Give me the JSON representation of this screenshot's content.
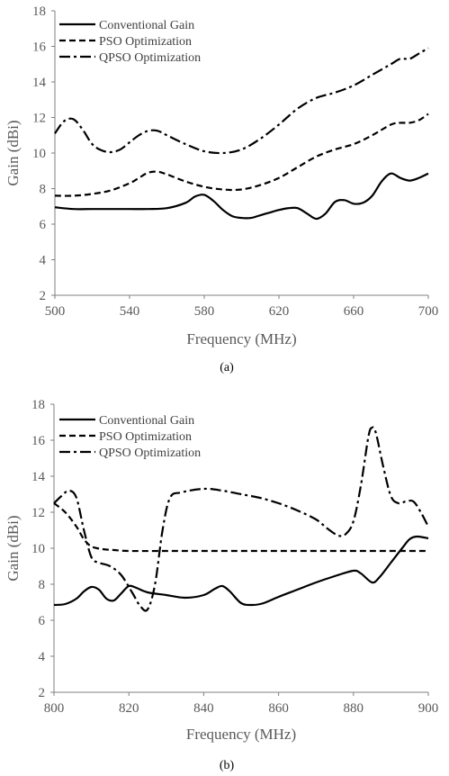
{
  "chart_data": [
    {
      "type": "line",
      "caption": "(a)",
      "xlabel": "Frequency (MHz)",
      "ylabel": "Gain (dBi)",
      "xlim": [
        500,
        700
      ],
      "ylim": [
        2,
        18
      ],
      "xticks": [
        500,
        540,
        580,
        620,
        660,
        700
      ],
      "yticks": [
        2,
        4,
        6,
        8,
        10,
        12,
        14,
        16,
        18
      ],
      "grid": false,
      "legend_position": "top-left",
      "series": [
        {
          "name": "Conventional Gain",
          "style": "solid",
          "points": [
            [
              500,
              6.95
            ],
            [
              510,
              6.85
            ],
            [
              520,
              6.85
            ],
            [
              530,
              6.85
            ],
            [
              540,
              6.85
            ],
            [
              550,
              6.85
            ],
            [
              560,
              6.9
            ],
            [
              570,
              7.2
            ],
            [
              575,
              7.55
            ],
            [
              580,
              7.65
            ],
            [
              585,
              7.3
            ],
            [
              590,
              6.8
            ],
            [
              595,
              6.45
            ],
            [
              600,
              6.35
            ],
            [
              605,
              6.35
            ],
            [
              610,
              6.5
            ],
            [
              615,
              6.65
            ],
            [
              620,
              6.8
            ],
            [
              625,
              6.9
            ],
            [
              630,
              6.9
            ],
            [
              635,
              6.6
            ],
            [
              640,
              6.3
            ],
            [
              645,
              6.6
            ],
            [
              650,
              7.25
            ],
            [
              655,
              7.35
            ],
            [
              660,
              7.15
            ],
            [
              665,
              7.2
            ],
            [
              670,
              7.6
            ],
            [
              675,
              8.4
            ],
            [
              680,
              8.85
            ],
            [
              685,
              8.6
            ],
            [
              690,
              8.45
            ],
            [
              695,
              8.6
            ],
            [
              700,
              8.85
            ]
          ]
        },
        {
          "name": "PSO Optimization",
          "style": "dashed",
          "points": [
            [
              500,
              7.6
            ],
            [
              510,
              7.6
            ],
            [
              520,
              7.7
            ],
            [
              530,
              7.9
            ],
            [
              540,
              8.3
            ],
            [
              545,
              8.6
            ],
            [
              550,
              8.9
            ],
            [
              555,
              8.95
            ],
            [
              560,
              8.8
            ],
            [
              570,
              8.4
            ],
            [
              580,
              8.1
            ],
            [
              590,
              7.95
            ],
            [
              600,
              7.95
            ],
            [
              610,
              8.2
            ],
            [
              620,
              8.6
            ],
            [
              630,
              9.2
            ],
            [
              640,
              9.8
            ],
            [
              650,
              10.2
            ],
            [
              660,
              10.5
            ],
            [
              670,
              11.0
            ],
            [
              680,
              11.6
            ],
            [
              685,
              11.7
            ],
            [
              690,
              11.7
            ],
            [
              695,
              11.85
            ],
            [
              700,
              12.2
            ]
          ]
        },
        {
          "name": "QPSO Optimization",
          "style": "dashdot",
          "points": [
            [
              500,
              11.1
            ],
            [
              505,
              11.8
            ],
            [
              510,
              11.9
            ],
            [
              515,
              11.3
            ],
            [
              520,
              10.5
            ],
            [
              525,
              10.15
            ],
            [
              530,
              10.05
            ],
            [
              535,
              10.2
            ],
            [
              540,
              10.6
            ],
            [
              545,
              11.0
            ],
            [
              550,
              11.25
            ],
            [
              555,
              11.25
            ],
            [
              560,
              11.0
            ],
            [
              570,
              10.5
            ],
            [
              580,
              10.1
            ],
            [
              590,
              10.0
            ],
            [
              600,
              10.2
            ],
            [
              610,
              10.8
            ],
            [
              620,
              11.6
            ],
            [
              630,
              12.5
            ],
            [
              640,
              13.1
            ],
            [
              650,
              13.4
            ],
            [
              660,
              13.8
            ],
            [
              670,
              14.4
            ],
            [
              680,
              15.0
            ],
            [
              685,
              15.3
            ],
            [
              690,
              15.3
            ],
            [
              695,
              15.6
            ],
            [
              700,
              15.9
            ]
          ]
        }
      ]
    },
    {
      "type": "line",
      "caption": "(b)",
      "xlabel": "Frequency (MHz)",
      "ylabel": "Gain (dBi)",
      "xlim": [
        800,
        900
      ],
      "ylim": [
        2,
        18
      ],
      "xticks": [
        800,
        820,
        840,
        860,
        880,
        900
      ],
      "yticks": [
        2,
        4,
        6,
        8,
        10,
        12,
        14,
        16,
        18
      ],
      "grid": false,
      "legend_position": "top-left",
      "series": [
        {
          "name": "Conventional Gain",
          "style": "solid",
          "points": [
            [
              800,
              6.85
            ],
            [
              803,
              6.9
            ],
            [
              806,
              7.2
            ],
            [
              808,
              7.6
            ],
            [
              810,
              7.85
            ],
            [
              812,
              7.7
            ],
            [
              814,
              7.2
            ],
            [
              816,
              7.1
            ],
            [
              818,
              7.5
            ],
            [
              820,
              7.9
            ],
            [
              822,
              7.8
            ],
            [
              825,
              7.55
            ],
            [
              830,
              7.4
            ],
            [
              835,
              7.25
            ],
            [
              840,
              7.4
            ],
            [
              843,
              7.75
            ],
            [
              845,
              7.9
            ],
            [
              847,
              7.6
            ],
            [
              850,
              6.95
            ],
            [
              853,
              6.85
            ],
            [
              856,
              6.95
            ],
            [
              860,
              7.3
            ],
            [
              865,
              7.7
            ],
            [
              870,
              8.1
            ],
            [
              875,
              8.45
            ],
            [
              880,
              8.75
            ],
            [
              882,
              8.6
            ],
            [
              885,
              8.1
            ],
            [
              887,
              8.4
            ],
            [
              890,
              9.2
            ],
            [
              893,
              10.0
            ],
            [
              895,
              10.5
            ],
            [
              897,
              10.65
            ],
            [
              900,
              10.55
            ]
          ]
        },
        {
          "name": "PSO Optimization",
          "style": "dashed",
          "points": [
            [
              800,
              12.5
            ],
            [
              803,
              12.0
            ],
            [
              806,
              11.2
            ],
            [
              808,
              10.5
            ],
            [
              810,
              10.1
            ],
            [
              813,
              9.95
            ],
            [
              816,
              9.9
            ],
            [
              820,
              9.85
            ],
            [
              830,
              9.85
            ],
            [
              840,
              9.85
            ],
            [
              850,
              9.85
            ],
            [
              860,
              9.85
            ],
            [
              870,
              9.85
            ],
            [
              880,
              9.85
            ],
            [
              890,
              9.85
            ],
            [
              900,
              9.85
            ]
          ]
        },
        {
          "name": "QPSO Optimization",
          "style": "dashdot",
          "points": [
            [
              800,
              12.5
            ],
            [
              802,
              12.9
            ],
            [
              804,
              13.2
            ],
            [
              806,
              12.8
            ],
            [
              808,
              11.0
            ],
            [
              810,
              9.5
            ],
            [
              812,
              9.2
            ],
            [
              815,
              9.0
            ],
            [
              818,
              8.5
            ],
            [
              821,
              7.5
            ],
            [
              823,
              6.8
            ],
            [
              825,
              6.6
            ],
            [
              827,
              8.0
            ],
            [
              829,
              11.0
            ],
            [
              831,
              12.8
            ],
            [
              834,
              13.1
            ],
            [
              840,
              13.3
            ],
            [
              845,
              13.2
            ],
            [
              850,
              13.0
            ],
            [
              855,
              12.8
            ],
            [
              860,
              12.5
            ],
            [
              865,
              12.1
            ],
            [
              870,
              11.6
            ],
            [
              873,
              11.1
            ],
            [
              876,
              10.7
            ],
            [
              878,
              10.8
            ],
            [
              880,
              11.5
            ],
            [
              882,
              13.5
            ],
            [
              884,
              16.2
            ],
            [
              885,
              16.7
            ],
            [
              886,
              16.4
            ],
            [
              888,
              14.5
            ],
            [
              890,
              12.9
            ],
            [
              892,
              12.5
            ],
            [
              894,
              12.6
            ],
            [
              896,
              12.6
            ],
            [
              898,
              12.0
            ],
            [
              900,
              11.2
            ]
          ]
        }
      ]
    }
  ]
}
